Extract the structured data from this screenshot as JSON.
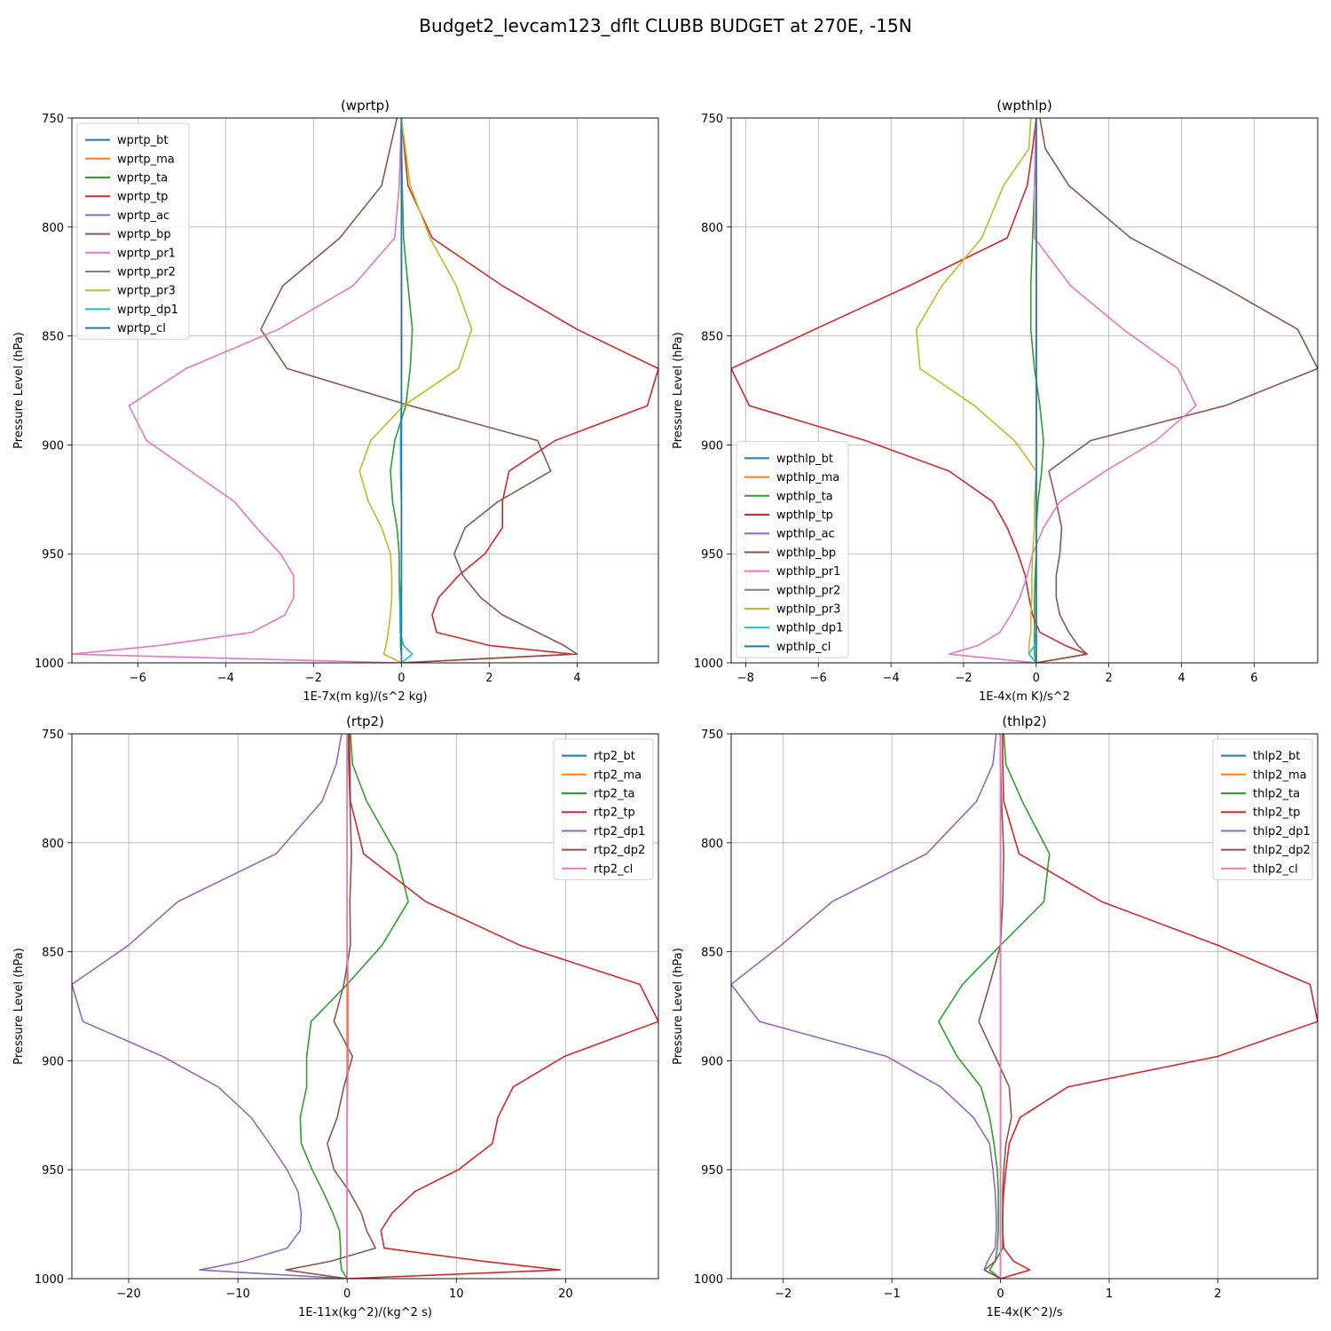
{
  "figure": {
    "title": "Budget2_levcam123_dflt CLUBB BUDGET at 270E, -15N"
  },
  "colors": [
    "#1f77b4",
    "#ff7f0e",
    "#2ca02c",
    "#d62728",
    "#9467bd",
    "#8c564b",
    "#e377c2",
    "#7f7f7f",
    "#bcbd22",
    "#17becf"
  ],
  "chart_data": [
    {
      "type": "line",
      "title": "(wprtp)",
      "xlabel": "1E-7x(m kg)/(s^2 kg)",
      "ylabel": "Pressure Level (hPa)",
      "xlim": [
        -7.5,
        5.85
      ],
      "ylim": [
        1000,
        750
      ],
      "xticks": [
        -6,
        -4,
        -2,
        0,
        2,
        4
      ],
      "yticks": [
        750,
        800,
        850,
        900,
        950,
        1000
      ],
      "grid": true,
      "legend_loc": "upper left",
      "levels": [
        750,
        781,
        805,
        827,
        847,
        865,
        882,
        898,
        912,
        926,
        938,
        950,
        960,
        970,
        978,
        986,
        992,
        996,
        1000
      ],
      "series": [
        {
          "name": "wprtp_bt",
          "color": "#1f77b4",
          "values": [
            0,
            0,
            0,
            0,
            0,
            0,
            0,
            0,
            0,
            0,
            0,
            0,
            0,
            0,
            0,
            0,
            0,
            0,
            0
          ]
        },
        {
          "name": "wprtp_ma",
          "color": "#ff7f0e",
          "values": [
            0,
            0,
            0,
            0.01,
            0.01,
            0.01,
            0,
            0,
            0,
            0,
            0,
            0,
            0,
            0,
            0,
            0,
            0,
            0,
            0
          ]
        },
        {
          "name": "wprtp_ta",
          "color": "#2ca02c",
          "values": [
            0,
            0.02,
            0.05,
            0.15,
            0.25,
            0.2,
            0.1,
            -0.15,
            -0.25,
            -0.2,
            -0.1,
            -0.05,
            -0.05,
            -0.04,
            -0.03,
            -0.02,
            -0.02,
            0,
            0
          ]
        },
        {
          "name": "wprtp_tp",
          "color": "#d62728",
          "values": [
            0,
            0.15,
            0.7,
            2.3,
            4.0,
            5.85,
            5.6,
            3.5,
            2.45,
            2.3,
            2.3,
            1.9,
            1.3,
            0.85,
            0.7,
            0.8,
            2.0,
            3.9,
            0
          ]
        },
        {
          "name": "wprtp_ac",
          "color": "#9467bd",
          "values": [
            0,
            0,
            0,
            0,
            0,
            0,
            0,
            0,
            0,
            0,
            0,
            0,
            0,
            0,
            0,
            0,
            0,
            0,
            0
          ]
        },
        {
          "name": "wprtp_bp",
          "color": "#8c564b",
          "values": [
            -0.1,
            -0.45,
            -1.4,
            -2.7,
            -3.2,
            -2.6,
            0.2,
            3.1,
            3.4,
            2.2,
            1.45,
            1.2,
            1.4,
            1.8,
            2.3,
            3.1,
            3.7,
            4.0,
            0
          ]
        },
        {
          "name": "wprtp_pr1",
          "color": "#e377c2",
          "values": [
            0,
            -0.05,
            -0.15,
            -1.1,
            -2.8,
            -4.9,
            -6.2,
            -5.8,
            -4.8,
            -3.8,
            -3.3,
            -2.75,
            -2.45,
            -2.45,
            -2.65,
            -3.4,
            -5.5,
            -7.5,
            0
          ]
        },
        {
          "name": "wprtp_pr2",
          "color": "#7f7f7f",
          "values": [
            0,
            0,
            0,
            0,
            0,
            0,
            0,
            0,
            0,
            0,
            0,
            0,
            0,
            0,
            0,
            0,
            0,
            0,
            0
          ]
        },
        {
          "name": "wprtp_pr3",
          "color": "#bcbd22",
          "values": [
            0,
            0.2,
            0.65,
            1.25,
            1.6,
            1.3,
            0.05,
            -0.7,
            -0.95,
            -0.75,
            -0.45,
            -0.25,
            -0.22,
            -0.22,
            -0.25,
            -0.3,
            -0.35,
            -0.4,
            0
          ]
        },
        {
          "name": "wprtp_dp1",
          "color": "#17becf",
          "values": [
            0,
            0,
            0,
            0,
            0,
            0,
            0,
            -0.02,
            -0.02,
            0,
            0,
            0,
            0,
            -0.02,
            -0.03,
            -0.03,
            0.05,
            0.25,
            0
          ]
        },
        {
          "name": "wprtp_cl",
          "color": "#1f77b4",
          "values": [
            0,
            0,
            0,
            0,
            0,
            0,
            0,
            0,
            0,
            0,
            0,
            0,
            0,
            0,
            0,
            0,
            0,
            0,
            0
          ]
        }
      ]
    },
    {
      "type": "line",
      "title": "(wpthlp)",
      "xlabel": "1E-4x(m K)/s^2",
      "ylabel": "Pressure Level (hPa)",
      "xlim": [
        -8.4,
        7.75
      ],
      "ylim": [
        1000,
        750
      ],
      "xticks": [
        -8,
        -6,
        -4,
        -2,
        0,
        2,
        4,
        6
      ],
      "yticks": [
        750,
        800,
        850,
        900,
        950,
        1000
      ],
      "grid": true,
      "legend_loc": "lower left",
      "levels": [
        750,
        764,
        781,
        805,
        827,
        847,
        865,
        882,
        898,
        912,
        926,
        938,
        950,
        960,
        970,
        978,
        986,
        992,
        996,
        1000
      ],
      "series": [
        {
          "name": "wpthlp_bt",
          "color": "#1f77b4",
          "values": [
            0,
            0,
            0,
            0,
            0,
            0,
            0,
            0,
            0,
            0,
            0,
            0,
            0,
            0,
            0,
            0,
            0,
            0,
            0,
            0
          ]
        },
        {
          "name": "wpthlp_ma",
          "color": "#ff7f0e",
          "values": [
            0,
            0,
            0,
            0,
            0,
            0,
            0,
            0,
            0,
            0,
            0,
            0,
            0,
            0,
            0,
            0,
            0,
            0,
            0,
            0
          ]
        },
        {
          "name": "wpthlp_ta",
          "color": "#2ca02c",
          "values": [
            0,
            -0.02,
            -0.05,
            -0.1,
            -0.15,
            -0.15,
            -0.05,
            0.1,
            0.2,
            0.15,
            0.05,
            0,
            0,
            -0.03,
            -0.05,
            -0.05,
            -0.05,
            -0.05,
            -0.05,
            0
          ]
        },
        {
          "name": "wpthlp_tp",
          "color": "#d62728",
          "values": [
            0,
            -0.1,
            -0.25,
            -0.8,
            -3.5,
            -6.1,
            -8.4,
            -7.9,
            -4.7,
            -2.4,
            -1.2,
            -0.8,
            -0.5,
            -0.3,
            -0.2,
            -0.1,
            0.1,
            0.8,
            1.4,
            0
          ]
        },
        {
          "name": "wpthlp_ac",
          "color": "#9467bd",
          "values": [
            0,
            0,
            0,
            0,
            0,
            0,
            0,
            0,
            0,
            0,
            0,
            0,
            0,
            0,
            0,
            0,
            0,
            0,
            0,
            0
          ]
        },
        {
          "name": "wpthlp_bp",
          "color": "#8c564b",
          "values": [
            0.1,
            0.25,
            0.9,
            2.6,
            5.1,
            7.2,
            7.75,
            5.2,
            1.5,
            0.35,
            0.55,
            0.7,
            0.65,
            0.55,
            0.55,
            0.65,
            0.9,
            1.15,
            1.4,
            0
          ]
        },
        {
          "name": "wpthlp_pr1",
          "color": "#e377c2",
          "values": [
            0,
            -0.03,
            -0.05,
            -0.05,
            0.95,
            2.4,
            3.9,
            4.4,
            3.3,
            1.9,
            0.65,
            0.2,
            -0.1,
            -0.25,
            -0.45,
            -0.7,
            -1.0,
            -1.6,
            -2.4,
            0
          ]
        },
        {
          "name": "wpthlp_pr2",
          "color": "#7f7f7f",
          "values": [
            0,
            0,
            0,
            0,
            0,
            0,
            0,
            0,
            0,
            0,
            0,
            0,
            0,
            0,
            0,
            0,
            0,
            0,
            0,
            0
          ]
        },
        {
          "name": "wpthlp_pr3",
          "color": "#bcbd22",
          "values": [
            -0.15,
            -0.2,
            -0.9,
            -1.5,
            -2.6,
            -3.3,
            -3.2,
            -1.7,
            -0.6,
            0.0,
            -0.05,
            -0.05,
            -0.1,
            -0.12,
            -0.12,
            -0.15,
            -0.15,
            -0.2,
            -0.2,
            0
          ]
        },
        {
          "name": "wpthlp_dp1",
          "color": "#17becf",
          "values": [
            0,
            0,
            0,
            0,
            0,
            0,
            0,
            0,
            0,
            0,
            0,
            0,
            0,
            0,
            0,
            0,
            0,
            -0.05,
            -0.2,
            0
          ]
        },
        {
          "name": "wpthlp_cl",
          "color": "#1f77b4",
          "values": [
            0,
            0,
            0,
            0,
            0,
            0,
            0,
            0,
            0,
            0,
            0,
            0,
            0,
            0,
            0,
            0,
            0,
            0,
            0,
            0
          ]
        }
      ]
    },
    {
      "type": "line",
      "title": "(rtp2)",
      "xlabel": "1E-11x(kg^2)/(kg^2 s)",
      "ylabel": "Pressure Level (hPa)",
      "xlim": [
        -25.2,
        28.5
      ],
      "ylim": [
        1000,
        750
      ],
      "xticks": [
        -20,
        -10,
        0,
        10,
        20
      ],
      "yticks": [
        750,
        800,
        850,
        900,
        950,
        1000
      ],
      "grid": true,
      "legend_loc": "upper right",
      "levels": [
        750,
        764,
        781,
        805,
        827,
        847,
        865,
        882,
        898,
        912,
        926,
        938,
        950,
        960,
        970,
        978,
        986,
        992,
        996,
        1000
      ],
      "series": [
        {
          "name": "rtp2_bt",
          "color": "#1f77b4",
          "values": [
            0,
            0,
            0,
            0,
            0,
            0,
            0,
            0,
            0,
            0,
            0,
            0,
            0,
            0,
            0,
            0,
            0,
            0,
            0,
            0
          ]
        },
        {
          "name": "rtp2_ma",
          "color": "#ff7f0e",
          "values": [
            0,
            0,
            0,
            0,
            0,
            0,
            0,
            0,
            0,
            0,
            0,
            0,
            0,
            0,
            0,
            0,
            0,
            0,
            0,
            0
          ]
        },
        {
          "name": "rtp2_ta",
          "color": "#2ca02c",
          "values": [
            0.3,
            0.5,
            1.8,
            4.5,
            5.6,
            3.2,
            0,
            -3.3,
            -3.7,
            -3.7,
            -4.3,
            -4.2,
            -3.2,
            -2.2,
            -1.3,
            -0.7,
            -0.6,
            -0.6,
            -0.5,
            0
          ]
        },
        {
          "name": "rtp2_tp",
          "color": "#d62728",
          "values": [
            0.2,
            0.25,
            0.3,
            1.5,
            7.2,
            15.8,
            26.8,
            28.5,
            19.9,
            15.2,
            13.8,
            13.3,
            10.2,
            6.2,
            4.1,
            3.1,
            3.4,
            12.5,
            19.5,
            0
          ]
        },
        {
          "name": "rtp2_dp1",
          "color": "#9467bd",
          "values": [
            -0.5,
            -1.0,
            -2.3,
            -6.5,
            -15.5,
            -20.0,
            -25.2,
            -24.2,
            -16.9,
            -11.8,
            -8.8,
            -7.1,
            -5.5,
            -4.5,
            -4.2,
            -4.3,
            -5.5,
            -9.5,
            -13.5,
            0
          ]
        },
        {
          "name": "rtp2_dp2",
          "color": "#8c564b",
          "values": [
            0.1,
            0.15,
            0.25,
            0.4,
            0.25,
            0.3,
            -0.3,
            -1.2,
            0.5,
            -0.3,
            -0.9,
            -1.8,
            -1.2,
            0.2,
            1.3,
            1.8,
            2.6,
            -1.5,
            -5.6,
            0
          ]
        },
        {
          "name": "rtp2_cl",
          "color": "#e377c2",
          "values": [
            0,
            0,
            0,
            0,
            0,
            0,
            0.1,
            0.1,
            0.1,
            0.05,
            0,
            0,
            0,
            0,
            0,
            0,
            0,
            0,
            0,
            0
          ]
        }
      ]
    },
    {
      "type": "line",
      "title": "(thlp2)",
      "xlabel": "1E-4x(K^2)/s",
      "ylabel": "Pressure Level (hPa)",
      "xlim": [
        -2.48,
        2.92
      ],
      "ylim": [
        1000,
        750
      ],
      "xticks": [
        -2,
        -1,
        0,
        1,
        2
      ],
      "yticks": [
        750,
        800,
        850,
        900,
        950,
        1000
      ],
      "grid": true,
      "legend_loc": "upper right",
      "levels": [
        750,
        764,
        781,
        805,
        827,
        847,
        865,
        882,
        898,
        912,
        926,
        938,
        950,
        960,
        970,
        978,
        986,
        992,
        996,
        1000
      ],
      "series": [
        {
          "name": "thlp2_bt",
          "color": "#1f77b4",
          "values": [
            0,
            0,
            0,
            0,
            0,
            0,
            0,
            0,
            0,
            0,
            0,
            0,
            0,
            0,
            0,
            0,
            0,
            0,
            0,
            0
          ]
        },
        {
          "name": "thlp2_ma",
          "color": "#ff7f0e",
          "values": [
            0,
            0,
            0,
            0,
            0,
            0,
            0,
            0,
            0,
            0,
            0,
            0,
            0,
            0,
            0,
            0,
            0,
            0,
            0,
            0
          ]
        },
        {
          "name": "thlp2_ta",
          "color": "#2ca02c",
          "values": [
            0.03,
            0.05,
            0.2,
            0.45,
            0.4,
            0.0,
            -0.35,
            -0.57,
            -0.4,
            -0.18,
            -0.1,
            -0.06,
            -0.03,
            -0.02,
            -0.02,
            -0.02,
            -0.03,
            -0.05,
            -0.1,
            0
          ]
        },
        {
          "name": "thlp2_tp",
          "color": "#d62728",
          "values": [
            0.02,
            0.02,
            0.03,
            0.17,
            0.93,
            2.0,
            2.85,
            2.92,
            2.0,
            0.62,
            0.18,
            0.08,
            0.05,
            0.03,
            0.02,
            0.02,
            0.03,
            0.12,
            0.27,
            0
          ]
        },
        {
          "name": "thlp2_dp1",
          "color": "#9467bd",
          "values": [
            -0.04,
            -0.07,
            -0.22,
            -0.68,
            -1.55,
            -2.02,
            -2.48,
            -2.22,
            -1.05,
            -0.55,
            -0.25,
            -0.1,
            -0.07,
            -0.05,
            -0.04,
            -0.04,
            -0.05,
            -0.12,
            -0.15,
            0
          ]
        },
        {
          "name": "thlp2_dp2",
          "color": "#8c564b",
          "values": [
            0,
            0,
            0.01,
            0.03,
            0.02,
            0,
            -0.1,
            -0.2,
            -0.05,
            0.08,
            0.1,
            0.05,
            0.03,
            0.02,
            0.02,
            0.02,
            0.02,
            -0.05,
            -0.15,
            0
          ]
        },
        {
          "name": "thlp2_cl",
          "color": "#e377c2",
          "values": [
            0,
            0,
            0,
            0,
            0,
            0,
            0,
            0,
            0,
            0,
            0,
            0,
            0,
            0,
            0,
            0,
            0,
            0,
            0,
            0
          ]
        }
      ]
    }
  ]
}
